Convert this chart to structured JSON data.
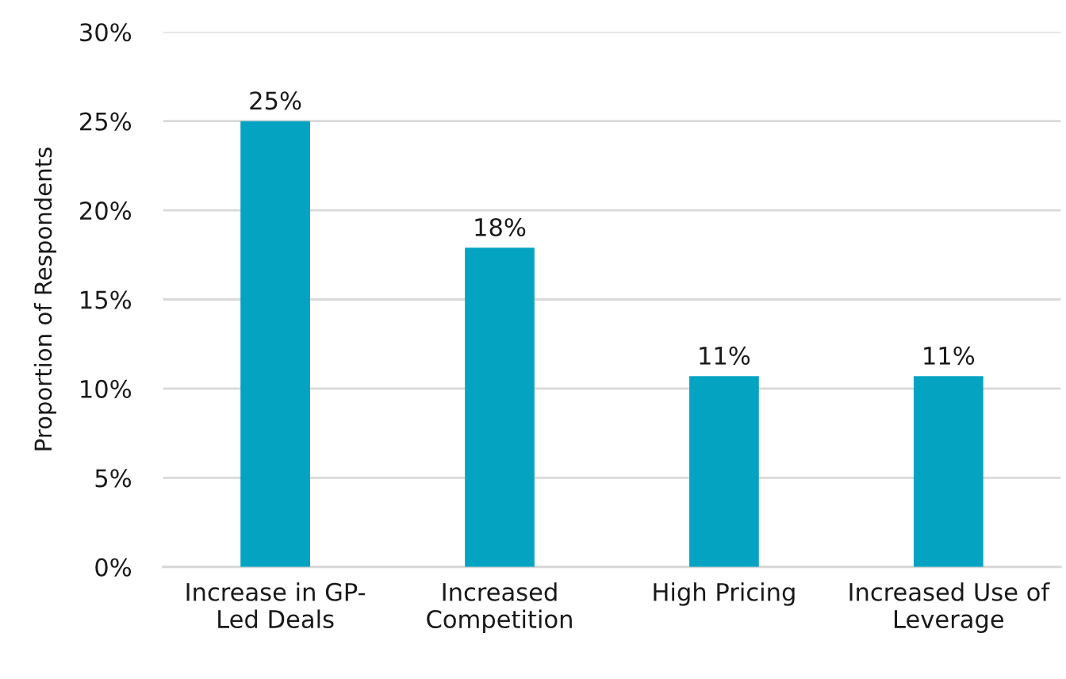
{
  "chart_data": {
    "type": "bar",
    "ylabel": "Proportion of Respondents",
    "categories": [
      "Increase in GP-\nLed Deals",
      "Increased\nCompetition",
      "High Pricing",
      "Increased Use of\nLeverage"
    ],
    "values": [
      25,
      17.9,
      10.7,
      10.7
    ],
    "value_labels": [
      "25%",
      "18%",
      "11%",
      "11%"
    ],
    "color": "#05a3c2",
    "ylim": [
      0,
      30
    ],
    "yticks": [
      {
        "value": 0,
        "label": "0%"
      },
      {
        "value": 5,
        "label": "5%"
      },
      {
        "value": 10,
        "label": "10%"
      },
      {
        "value": 15,
        "label": "15%"
      },
      {
        "value": 20,
        "label": "20%"
      },
      {
        "value": 25,
        "label": "25%"
      },
      {
        "value": 30,
        "label": "30%"
      }
    ],
    "grid": "y"
  }
}
